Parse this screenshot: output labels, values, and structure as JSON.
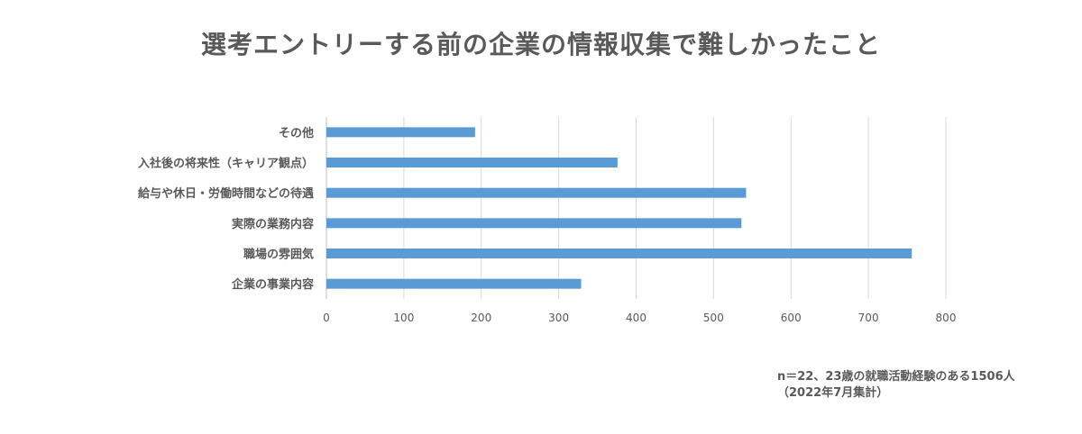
{
  "chart_data": {
    "type": "bar",
    "orientation": "horizontal",
    "title": "選考エントリーする前の企業の情報収集で難しかったこと",
    "categories": [
      "その他",
      "入社後の将来性（キャリア観点）",
      "給与や休日・労働時間などの待遇",
      "実際の業務内容",
      "職場の雰囲気",
      "企業の事業内容"
    ],
    "values": [
      192,
      376,
      542,
      536,
      756,
      329
    ],
    "xlim": [
      0,
      800
    ],
    "xticks": [
      "0",
      "100",
      "200",
      "300",
      "400",
      "500",
      "600",
      "700",
      "800"
    ],
    "grid": true,
    "bar_color": "#5b9bd5",
    "legend": "none"
  },
  "notes": {
    "line1": "n＝22、23歳の就職活動経験のある1506人",
    "line2": "（2022年7月集計）"
  }
}
